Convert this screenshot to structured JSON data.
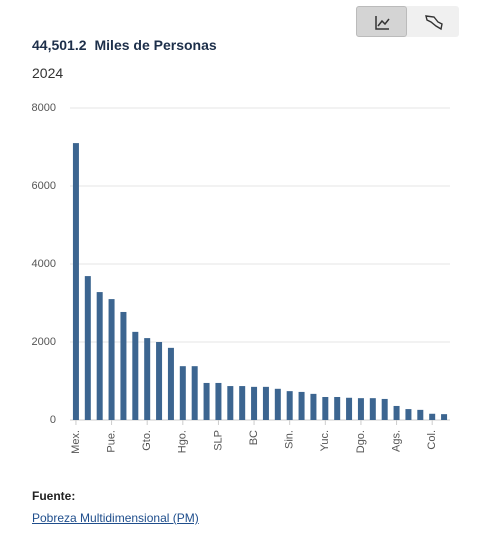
{
  "chart_data": {
    "type": "bar",
    "headline_value": "44,501.2",
    "headline_unit": "Miles de Personas",
    "subtitle": "2024",
    "categories": [
      "Mex.",
      null,
      null,
      "Pue.",
      null,
      null,
      "Gto.",
      null,
      null,
      "Hgo.",
      null,
      null,
      "SLP",
      null,
      null,
      "BC",
      null,
      null,
      "Sin.",
      null,
      null,
      "Yuc.",
      null,
      null,
      "Dgo.",
      null,
      null,
      "Ags.",
      null,
      null,
      "Col.",
      null
    ],
    "values": [
      7100,
      3690,
      3280,
      3100,
      2770,
      2260,
      2100,
      2000,
      1850,
      1380,
      1380,
      950,
      950,
      870,
      870,
      850,
      850,
      800,
      740,
      720,
      670,
      590,
      590,
      570,
      560,
      560,
      540,
      360,
      280,
      260,
      160,
      150
    ],
    "color": "#3c6590",
    "ylim": [
      0,
      8000
    ],
    "yticks": [
      0,
      2000,
      4000,
      6000,
      8000
    ],
    "grid": true,
    "source_label": "Fuente:",
    "source": "Pobreza Multidimensional (PM)"
  }
}
